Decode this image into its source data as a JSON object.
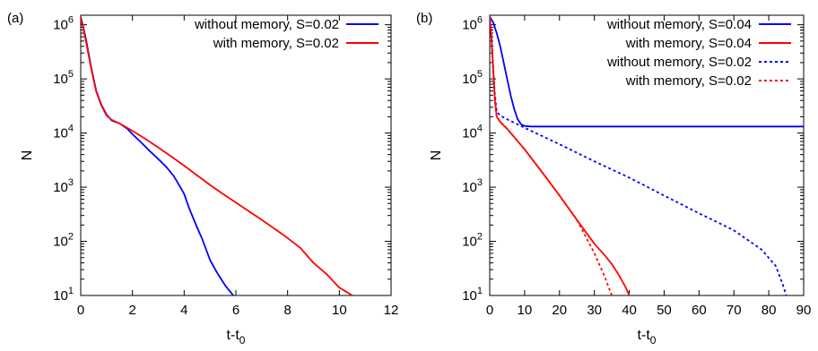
{
  "chart_data": [
    {
      "type": "line",
      "panel_label": "(a)",
      "xlabel": "t-t",
      "xlabel_sub": "0",
      "ylabel": "N",
      "yscale": "log",
      "xlim": [
        0,
        12
      ],
      "ylim": [
        10,
        1500000
      ],
      "x_ticks": [
        "0",
        "2",
        "4",
        "6",
        "8",
        "10",
        "12"
      ],
      "y_ticks": [
        {
          "base": "10",
          "exp": "1"
        },
        {
          "base": "10",
          "exp": "2"
        },
        {
          "base": "10",
          "exp": "3"
        },
        {
          "base": "10",
          "exp": "4"
        },
        {
          "base": "10",
          "exp": "5"
        },
        {
          "base": "10",
          "exp": "6"
        }
      ],
      "grid": false,
      "legend_position": "top-right",
      "series": [
        {
          "name": "without memory, S=0.02",
          "color": "#0000ff",
          "dash": "solid",
          "x": [
            0.0,
            0.1,
            0.2,
            0.3,
            0.4,
            0.5,
            0.6,
            0.8,
            1.0,
            1.2,
            1.5,
            1.8,
            2.0,
            2.3,
            2.6,
            3.0,
            3.3,
            3.6,
            3.8,
            4.0,
            4.2,
            4.5,
            4.7,
            5.0,
            5.3,
            5.6,
            5.9
          ],
          "y": [
            1400000,
            900000,
            550000,
            300000,
            170000,
            100000,
            60000,
            33000,
            22000,
            17000,
            15000,
            12000,
            9500,
            7000,
            5000,
            3300,
            2400,
            1600,
            1100,
            750,
            400,
            180,
            110,
            45,
            25,
            15,
            10
          ]
        },
        {
          "name": "with memory, S=0.02",
          "color": "#ff0000",
          "dash": "solid",
          "x": [
            0.0,
            0.1,
            0.2,
            0.3,
            0.4,
            0.5,
            0.6,
            0.8,
            1.0,
            1.2,
            1.5,
            2.0,
            2.5,
            3.0,
            3.5,
            4.0,
            4.5,
            5.0,
            5.5,
            6.0,
            6.5,
            7.0,
            7.5,
            8.0,
            8.5,
            9.0,
            9.5,
            10.0,
            10.5
          ],
          "y": [
            1400000,
            850000,
            500000,
            280000,
            160000,
            95000,
            58000,
            32000,
            21000,
            17500,
            15000,
            11000,
            7800,
            5400,
            3700,
            2500,
            1650,
            1100,
            750,
            520,
            360,
            250,
            170,
            115,
            75,
            40,
            25,
            14,
            10
          ]
        }
      ]
    },
    {
      "type": "line",
      "panel_label": "(b)",
      "xlabel": "t-t",
      "xlabel_sub": "0",
      "ylabel": "N",
      "yscale": "log",
      "xlim": [
        0,
        90
      ],
      "ylim": [
        10,
        1500000
      ],
      "x_ticks": [
        "0",
        "10",
        "20",
        "30",
        "40",
        "50",
        "60",
        "70",
        "80",
        "90"
      ],
      "y_ticks": [
        {
          "base": "10",
          "exp": "1"
        },
        {
          "base": "10",
          "exp": "2"
        },
        {
          "base": "10",
          "exp": "3"
        },
        {
          "base": "10",
          "exp": "4"
        },
        {
          "base": "10",
          "exp": "5"
        },
        {
          "base": "10",
          "exp": "6"
        }
      ],
      "grid": false,
      "legend_position": "top-right",
      "series": [
        {
          "name": "without memory, S=0.04",
          "color": "#0000ff",
          "dash": "solid",
          "x": [
            0,
            1,
            2,
            3,
            4,
            5,
            6,
            7,
            8,
            9,
            10,
            12,
            15,
            20,
            30,
            40,
            50,
            60,
            70,
            80,
            90
          ],
          "y": [
            1400000,
            1100000,
            700000,
            400000,
            200000,
            100000,
            50000,
            28000,
            18000,
            14500,
            13500,
            13200,
            13200,
            13200,
            13200,
            13200,
            13200,
            13200,
            13200,
            13200,
            13200
          ]
        },
        {
          "name": "with memory, S=0.04",
          "color": "#ff0000",
          "dash": "solid",
          "x": [
            0,
            0.5,
            1,
            1.5,
            2,
            3,
            5,
            10,
            15,
            20,
            25,
            30,
            33,
            35,
            37,
            39,
            40
          ],
          "y": [
            1400000,
            600000,
            150000,
            40000,
            20000,
            16000,
            12000,
            5000,
            1900,
            700,
            250,
            90,
            55,
            38,
            24,
            14,
            10
          ]
        },
        {
          "name": "without memory, S=0.02",
          "color": "#0000ff",
          "dash": "dotted",
          "x": [
            0,
            0.5,
            1,
            1.5,
            2,
            3,
            5,
            10,
            20,
            30,
            40,
            50,
            60,
            70,
            78,
            82,
            84,
            85
          ],
          "y": [
            1400000,
            600000,
            150000,
            50000,
            25000,
            21000,
            18000,
            12500,
            6200,
            3000,
            1500,
            700,
            330,
            160,
            70,
            35,
            16,
            10
          ]
        },
        {
          "name": "with memory, S=0.02",
          "color": "#ff0000",
          "dash": "dotted",
          "x": [
            0,
            0.5,
            1,
            1.5,
            2,
            3,
            5,
            10,
            15,
            20,
            25,
            30,
            33,
            35
          ],
          "y": [
            1400000,
            600000,
            150000,
            40000,
            20000,
            16000,
            12000,
            5000,
            1900,
            700,
            250,
            60,
            22,
            10
          ]
        }
      ]
    }
  ]
}
